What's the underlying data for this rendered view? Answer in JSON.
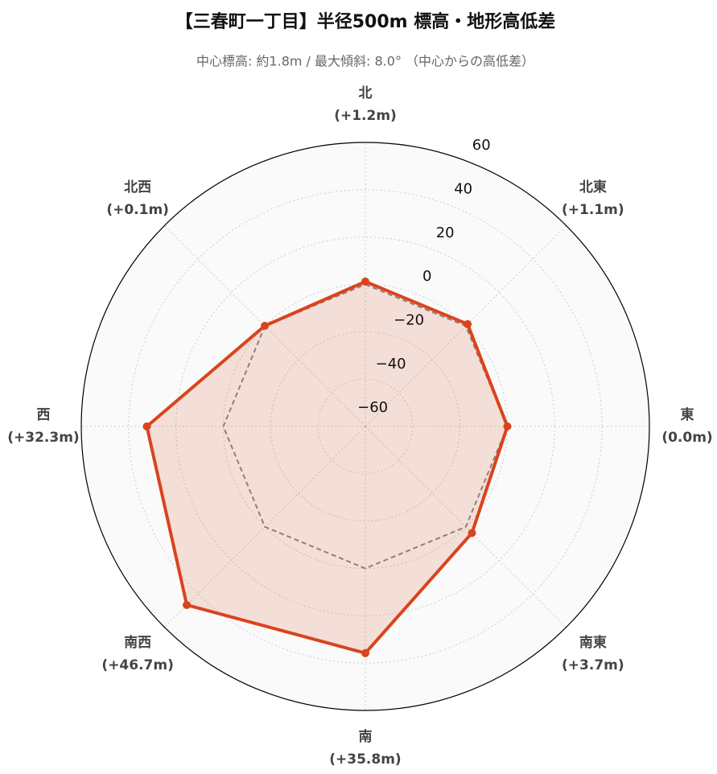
{
  "chart_data": {
    "type": "radar",
    "title": "【三春町一丁目】半径500m 標高・地形高低差",
    "subtitle": "中心標高: 約1.8m / 最大傾斜: 8.0° （中心からの高低差）",
    "categories": [
      "北",
      "北東",
      "東",
      "南東",
      "南",
      "南西",
      "西",
      "北西"
    ],
    "series": [
      {
        "color": "#888888",
        "values": [
          0,
          0,
          0,
          0,
          0,
          0,
          0,
          0
        ]
      },
      {
        "color": "#d9441c",
        "values": [
          1.2,
          1.1,
          0.0,
          3.7,
          35.8,
          46.7,
          32.3,
          0.1
        ],
        "value_labels": [
          "(+1.2m)",
          "(+1.1m)",
          "(0.0m)",
          "(+3.7m)",
          "(+35.8m)",
          "(+46.7m)",
          "(+32.3m)",
          "(+0.1m)"
        ]
      }
    ],
    "ylim": [
      -60,
      60
    ],
    "yticks": [
      {
        "value": -60,
        "label": "−60"
      },
      {
        "value": -40,
        "label": "−40"
      },
      {
        "value": -20,
        "label": "−20"
      },
      0,
      20,
      40,
      60
    ],
    "grid": true
  }
}
